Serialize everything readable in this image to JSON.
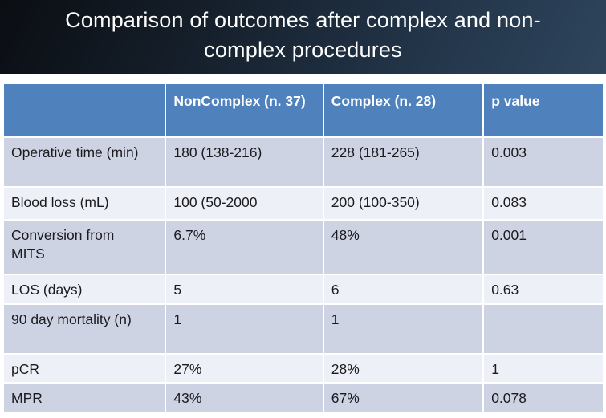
{
  "title": {
    "lines": [
      "Comparison of outcomes after complex and non-",
      "complex procedures"
    ]
  },
  "table": {
    "headers": [
      "",
      "NonComplex (n. 37)",
      "Complex (n. 28)",
      "p value"
    ],
    "rows": [
      [
        "Operative time (min)",
        "180 (138-216)",
        "228 (181-265)",
        "0.003"
      ],
      [
        "Blood loss (mL)",
        "100 (50-2000",
        "200 (100-350)",
        "0.083"
      ],
      [
        "Conversion from\nMITS",
        "6.7%",
        "48%",
        "0.001"
      ],
      [
        "LOS (days)",
        "5",
        "6",
        "0.63"
      ],
      [
        "90 day mortality (n)",
        "1",
        "1",
        ""
      ],
      [
        "pCR",
        "27%",
        "28%",
        "1"
      ],
      [
        "MPR",
        "43%",
        "67%",
        "0.078"
      ]
    ]
  },
  "colors": {
    "header_blue": "#4f81bd",
    "row_dark": "#cdd3e2",
    "row_light": "#eef0f7",
    "title_band_start": "#0b0e13",
    "title_band_end": "#2e455c",
    "title_text": "#fdfdfd",
    "cell_text": "#1b1b1f"
  }
}
